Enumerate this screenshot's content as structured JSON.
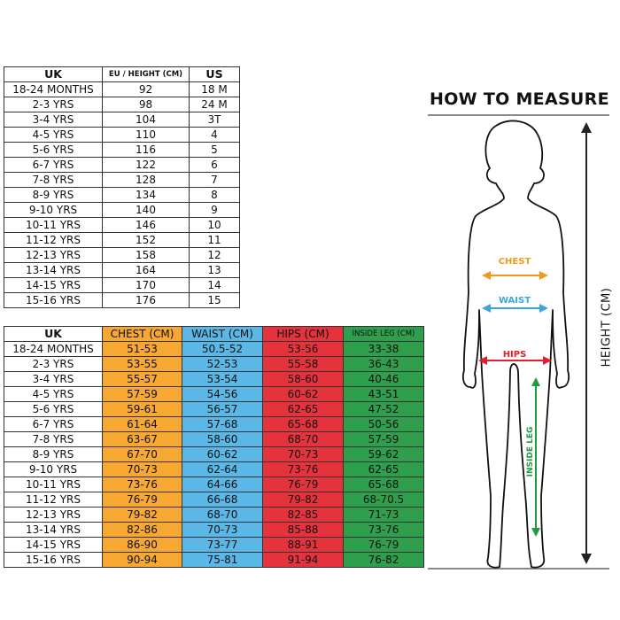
{
  "size_table": {
    "headers": [
      "UK",
      "EU / HEIGHT (CM)",
      "US"
    ],
    "rows": [
      [
        "18-24 MONTHS",
        "92",
        "18 M"
      ],
      [
        "2-3 YRS",
        "98",
        "24 M"
      ],
      [
        "3-4 YRS",
        "104",
        "3T"
      ],
      [
        "4-5 YRS",
        "110",
        "4"
      ],
      [
        "5-6 YRS",
        "116",
        "5"
      ],
      [
        "6-7 YRS",
        "122",
        "6"
      ],
      [
        "7-8 YRS",
        "128",
        "7"
      ],
      [
        "8-9 YRS",
        "134",
        "8"
      ],
      [
        "9-10 YRS",
        "140",
        "9"
      ],
      [
        "10-11 YRS",
        "146",
        "10"
      ],
      [
        "11-12 YRS",
        "152",
        "11"
      ],
      [
        "12-13 YRS",
        "158",
        "12"
      ],
      [
        "13-14 YRS",
        "164",
        "13"
      ],
      [
        "14-15 YRS",
        "170",
        "14"
      ],
      [
        "15-16 YRS",
        "176",
        "15"
      ]
    ]
  },
  "measure_table": {
    "headers": [
      "UK",
      "CHEST (CM)",
      "WAIST (CM)",
      "HIPS (CM)",
      "INSIDE LEG (CM)"
    ],
    "rows": [
      [
        "18-24 MONTHS",
        "51-53",
        "50.5-52",
        "53-56",
        "33-38"
      ],
      [
        "2-3 YRS",
        "53-55",
        "52-53",
        "55-58",
        "36-43"
      ],
      [
        "3-4 YRS",
        "55-57",
        "53-54",
        "58-60",
        "40-46"
      ],
      [
        "4-5 YRS",
        "57-59",
        "54-56",
        "60-62",
        "43-51"
      ],
      [
        "5-6 YRS",
        "59-61",
        "56-57",
        "62-65",
        "47-52"
      ],
      [
        "6-7 YRS",
        "61-64",
        "57-68",
        "65-68",
        "50-56"
      ],
      [
        "7-8 YRS",
        "63-67",
        "58-60",
        "68-70",
        "57-59"
      ],
      [
        "8-9 YRS",
        "67-70",
        "60-62",
        "70-73",
        "59-62"
      ],
      [
        "9-10 YRS",
        "70-73",
        "62-64",
        "73-76",
        "62-65"
      ],
      [
        "10-11 YRS",
        "73-76",
        "64-66",
        "76-79",
        "65-68"
      ],
      [
        "11-12 YRS",
        "76-79",
        "66-68",
        "79-82",
        "68-70.5"
      ],
      [
        "12-13 YRS",
        "79-82",
        "68-70",
        "82-85",
        "71-73"
      ],
      [
        "13-14 YRS",
        "82-86",
        "70-73",
        "85-88",
        "73-76"
      ],
      [
        "14-15 YRS",
        "86-90",
        "73-77",
        "88-91",
        "76-79"
      ],
      [
        "15-16 YRS",
        "90-94",
        "75-81",
        "91-94",
        "76-82"
      ]
    ]
  },
  "how_to_measure": {
    "title": "HOW TO MEASURE",
    "height_label": "HEIGHT (CM)",
    "chest_label": "CHEST",
    "waist_label": "WAIST",
    "hips_label": "HIPS",
    "inside_leg_label": "INSIDE LEG"
  },
  "colors": {
    "chest": "#f6a832",
    "waist": "#5ab7e6",
    "hips": "#e5333e",
    "inside_leg": "#2f9f4e"
  }
}
